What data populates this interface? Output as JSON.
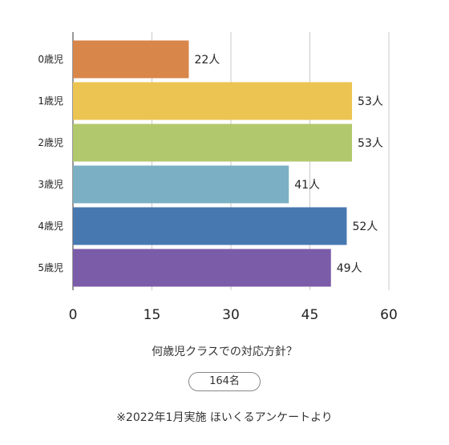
{
  "chart_data": {
    "type": "bar",
    "orientation": "horizontal",
    "categories": [
      "0歳児",
      "1歳児",
      "2歳児",
      "3歳児",
      "4歳児",
      "5歳児"
    ],
    "values": [
      22,
      53,
      53,
      41,
      52,
      49
    ],
    "value_labels": [
      "22人",
      "53人",
      "53人",
      "41人",
      "52人",
      "49人"
    ],
    "colors": [
      "#d9864a",
      "#ecc451",
      "#b2c86c",
      "#7bafc3",
      "#4878b0",
      "#7b5ca8"
    ],
    "xlim": [
      0,
      60
    ],
    "xticks": [
      "0",
      "15",
      "30",
      "45",
      "60"
    ],
    "grid": true
  },
  "caption": {
    "question": "何歳児クラスでの対応方針？",
    "respondents": "164名",
    "note": "※2022年1月実施 ほいくるアンケートより"
  }
}
